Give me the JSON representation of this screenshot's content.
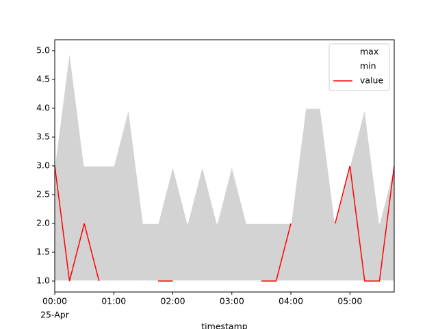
{
  "chart_data": {
    "type": "area_band",
    "x_label": "timestamp",
    "date_label": "25-Apr",
    "x": [
      "25-Apr 00:00",
      "25-Apr 00:15",
      "25-Apr 00:30",
      "25-Apr 00:45",
      "25-Apr 01:00",
      "25-Apr 01:15",
      "25-Apr 01:30",
      "25-Apr 01:45",
      "25-Apr 02:00",
      "25-Apr 02:15",
      "25-Apr 02:30",
      "25-Apr 02:45",
      "25-Apr 03:00",
      "25-Apr 03:15",
      "25-Apr 03:30",
      "25-Apr 03:45",
      "25-Apr 04:00",
      "25-Apr 04:15",
      "25-Apr 04:30",
      "25-Apr 04:45",
      "25-Apr 05:00",
      "25-Apr 05:15",
      "25-Apr 05:30",
      "25-Apr 05:45"
    ],
    "fill_color": "#d3d3d3",
    "series": [
      {
        "name": "max",
        "color": "#ffffff",
        "values": [
          3,
          5,
          3,
          3,
          3,
          4,
          2,
          2,
          3,
          2,
          3,
          2,
          3,
          2,
          2,
          2,
          2,
          4,
          4,
          2,
          3,
          4,
          2,
          3
        ]
      },
      {
        "name": "min",
        "color": "#ffffff",
        "values": [
          1,
          1,
          1,
          1,
          1,
          1,
          1,
          1,
          1,
          1,
          1,
          1,
          1,
          1,
          1,
          1,
          1,
          1,
          1,
          1,
          1,
          1,
          1,
          1
        ]
      },
      {
        "name": "value",
        "color": "#ff0000",
        "values": [
          3,
          1,
          2,
          1,
          null,
          null,
          null,
          1,
          1,
          null,
          null,
          null,
          null,
          null,
          1,
          1,
          2,
          null,
          null,
          2,
          3,
          1,
          1,
          3
        ]
      }
    ],
    "xlim": [
      "25-Apr 00:00",
      "25-Apr 05:45"
    ],
    "xticks": [
      {
        "value": "25-Apr 00:00",
        "label": "00:00"
      },
      {
        "value": "25-Apr 01:00",
        "label": "01:00"
      },
      {
        "value": "25-Apr 02:00",
        "label": "02:00"
      },
      {
        "value": "25-Apr 03:00",
        "label": "03:00"
      },
      {
        "value": "25-Apr 04:00",
        "label": "04:00"
      },
      {
        "value": "25-Apr 05:00",
        "label": "05:00"
      }
    ],
    "ylim": [
      0.81,
      5.19
    ],
    "yticks": [
      {
        "value": 1,
        "label": "1.0"
      },
      {
        "value": 1.5,
        "label": "1.5"
      },
      {
        "value": 2,
        "label": "2.0"
      },
      {
        "value": 2.5,
        "label": "2.5"
      },
      {
        "value": 3,
        "label": "3.0"
      },
      {
        "value": 3.5,
        "label": "3.5"
      },
      {
        "value": 4,
        "label": "4.0"
      },
      {
        "value": 4.5,
        "label": "4.5"
      },
      {
        "value": 5,
        "label": "5.0"
      }
    ],
    "legend": "upper right"
  }
}
